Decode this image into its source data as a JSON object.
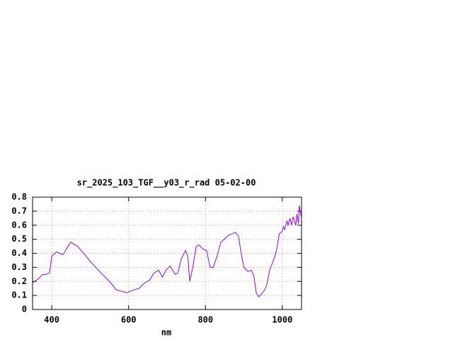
{
  "chart_data": {
    "type": "line",
    "title": "sr_2025_103_TGF__y03_r_rad 05-02-00",
    "xlabel": "nm",
    "x": [
      350,
      366,
      376,
      385,
      394,
      400,
      412,
      429,
      449,
      467,
      486,
      504,
      532,
      550,
      568,
      581,
      596,
      614,
      627,
      642,
      655,
      666,
      678,
      688,
      697,
      708,
      721,
      728,
      737,
      748,
      754,
      759,
      767,
      776,
      783,
      794,
      803,
      812,
      820,
      829,
      840,
      849,
      860,
      871,
      878,
      886,
      893,
      900,
      911,
      919,
      926,
      932,
      939,
      946,
      954,
      959,
      967,
      974,
      981,
      987,
      992,
      998,
      1003,
      1006,
      1012,
      1015,
      1020,
      1024,
      1028,
      1035,
      1038,
      1042,
      1044,
      1050
    ],
    "series": [
      {
        "color": "#9400d3",
        "values": [
          0.19,
          0.22,
          0.25,
          0.25,
          0.26,
          0.38,
          0.41,
          0.39,
          0.48,
          0.45,
          0.39,
          0.33,
          0.25,
          0.2,
          0.14,
          0.13,
          0.12,
          0.14,
          0.15,
          0.19,
          0.21,
          0.26,
          0.28,
          0.23,
          0.28,
          0.31,
          0.25,
          0.26,
          0.36,
          0.42,
          0.38,
          0.2,
          0.3,
          0.45,
          0.46,
          0.43,
          0.42,
          0.3,
          0.3,
          0.37,
          0.48,
          0.5,
          0.53,
          0.54,
          0.55,
          0.52,
          0.4,
          0.3,
          0.27,
          0.28,
          0.24,
          0.12,
          0.09,
          0.11,
          0.14,
          0.17,
          0.28,
          0.33,
          0.38,
          0.45,
          0.54,
          0.55,
          0.59,
          0.57,
          0.63,
          0.6,
          0.65,
          0.6,
          0.66,
          0.6,
          0.68,
          0.61,
          0.74,
          0.65
        ]
      }
    ],
    "xlim": [
      350,
      1050
    ],
    "xticks": [
      400,
      600,
      800,
      1000
    ],
    "ylim": [
      0,
      0.8
    ],
    "yticks": [
      0,
      0.1,
      0.2,
      0.3,
      0.4,
      0.5,
      0.6,
      0.7,
      0.8
    ],
    "grid": true
  }
}
